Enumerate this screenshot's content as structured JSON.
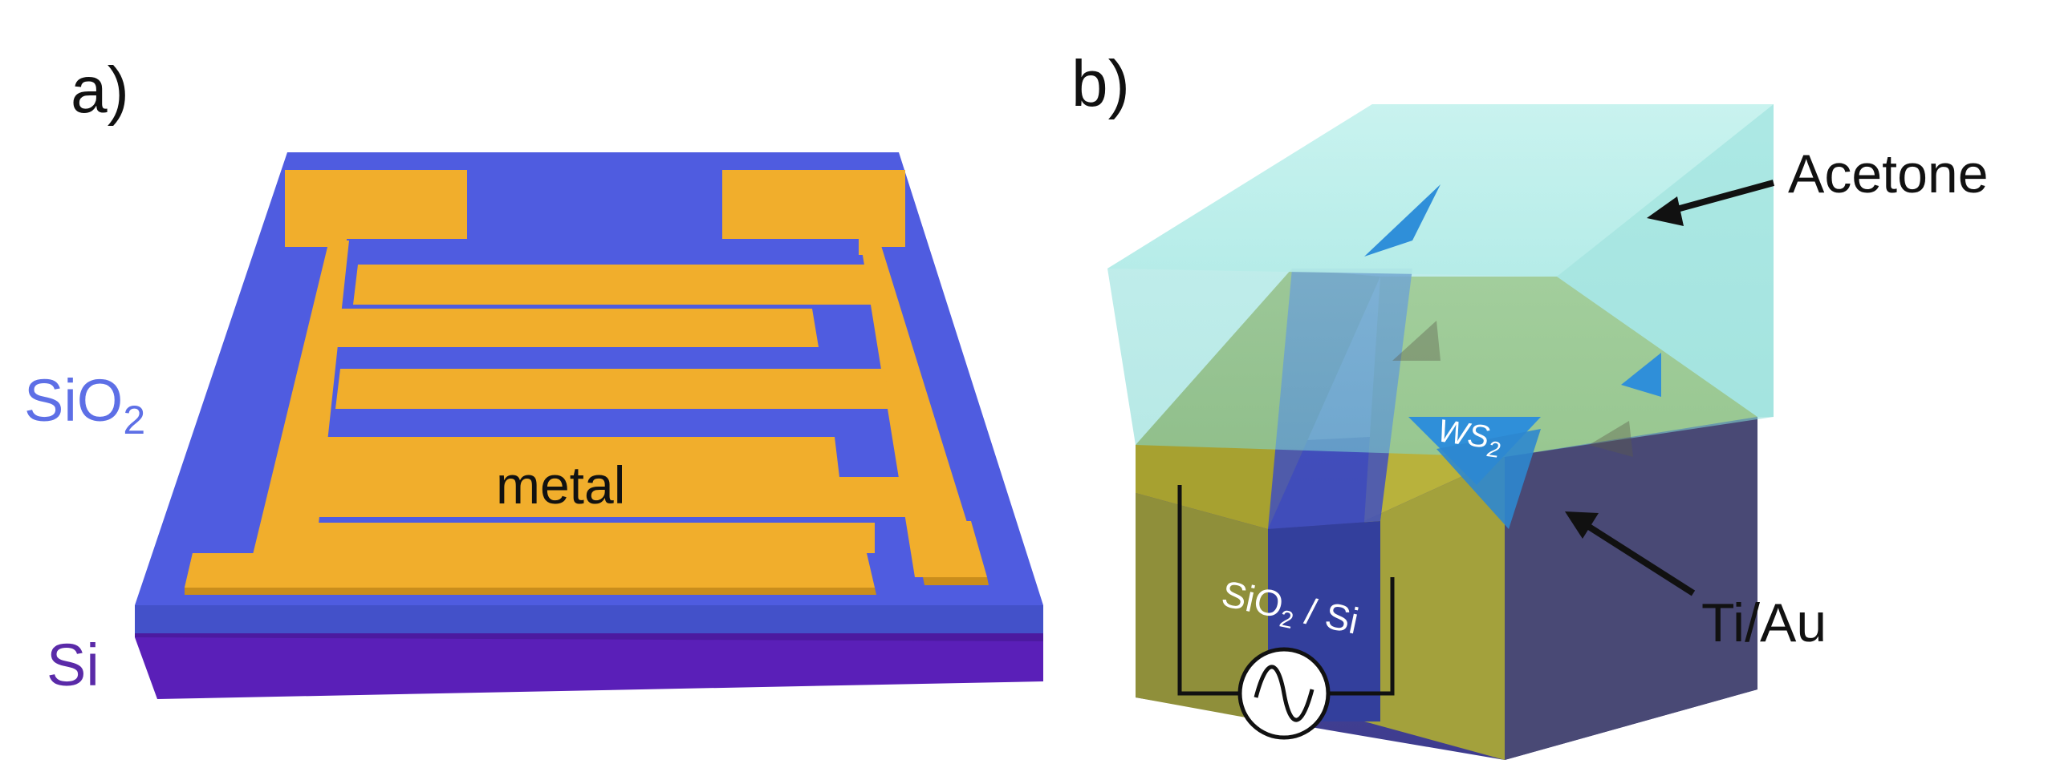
{
  "panels": {
    "a": {
      "label": "a)",
      "layer_top": "SiO",
      "layer_top_sub": "2",
      "layer_bottom": "Si",
      "electrode": "metal"
    },
    "b": {
      "label": "b)",
      "liquid": "Acetone",
      "flake": "WS",
      "flake_sub": "2",
      "substrate": "SiO",
      "substrate_sub": "2",
      "substrate_rest": " / Si",
      "contact": "Ti/Au"
    }
  },
  "colors": {
    "sio2": "#4f5ce0",
    "sio2_side": "#4753d6",
    "si": "#5a1fb8",
    "gold": "#f1ae2c",
    "gold_dark": "#c98d1c",
    "acetone": "#bff0ec",
    "ws2": "#2f8fd9",
    "label_sio2": "#5d6fe6",
    "label_si": "#5a2aa8"
  },
  "icons": [
    "ac-source-icon",
    "arrow-icon"
  ]
}
